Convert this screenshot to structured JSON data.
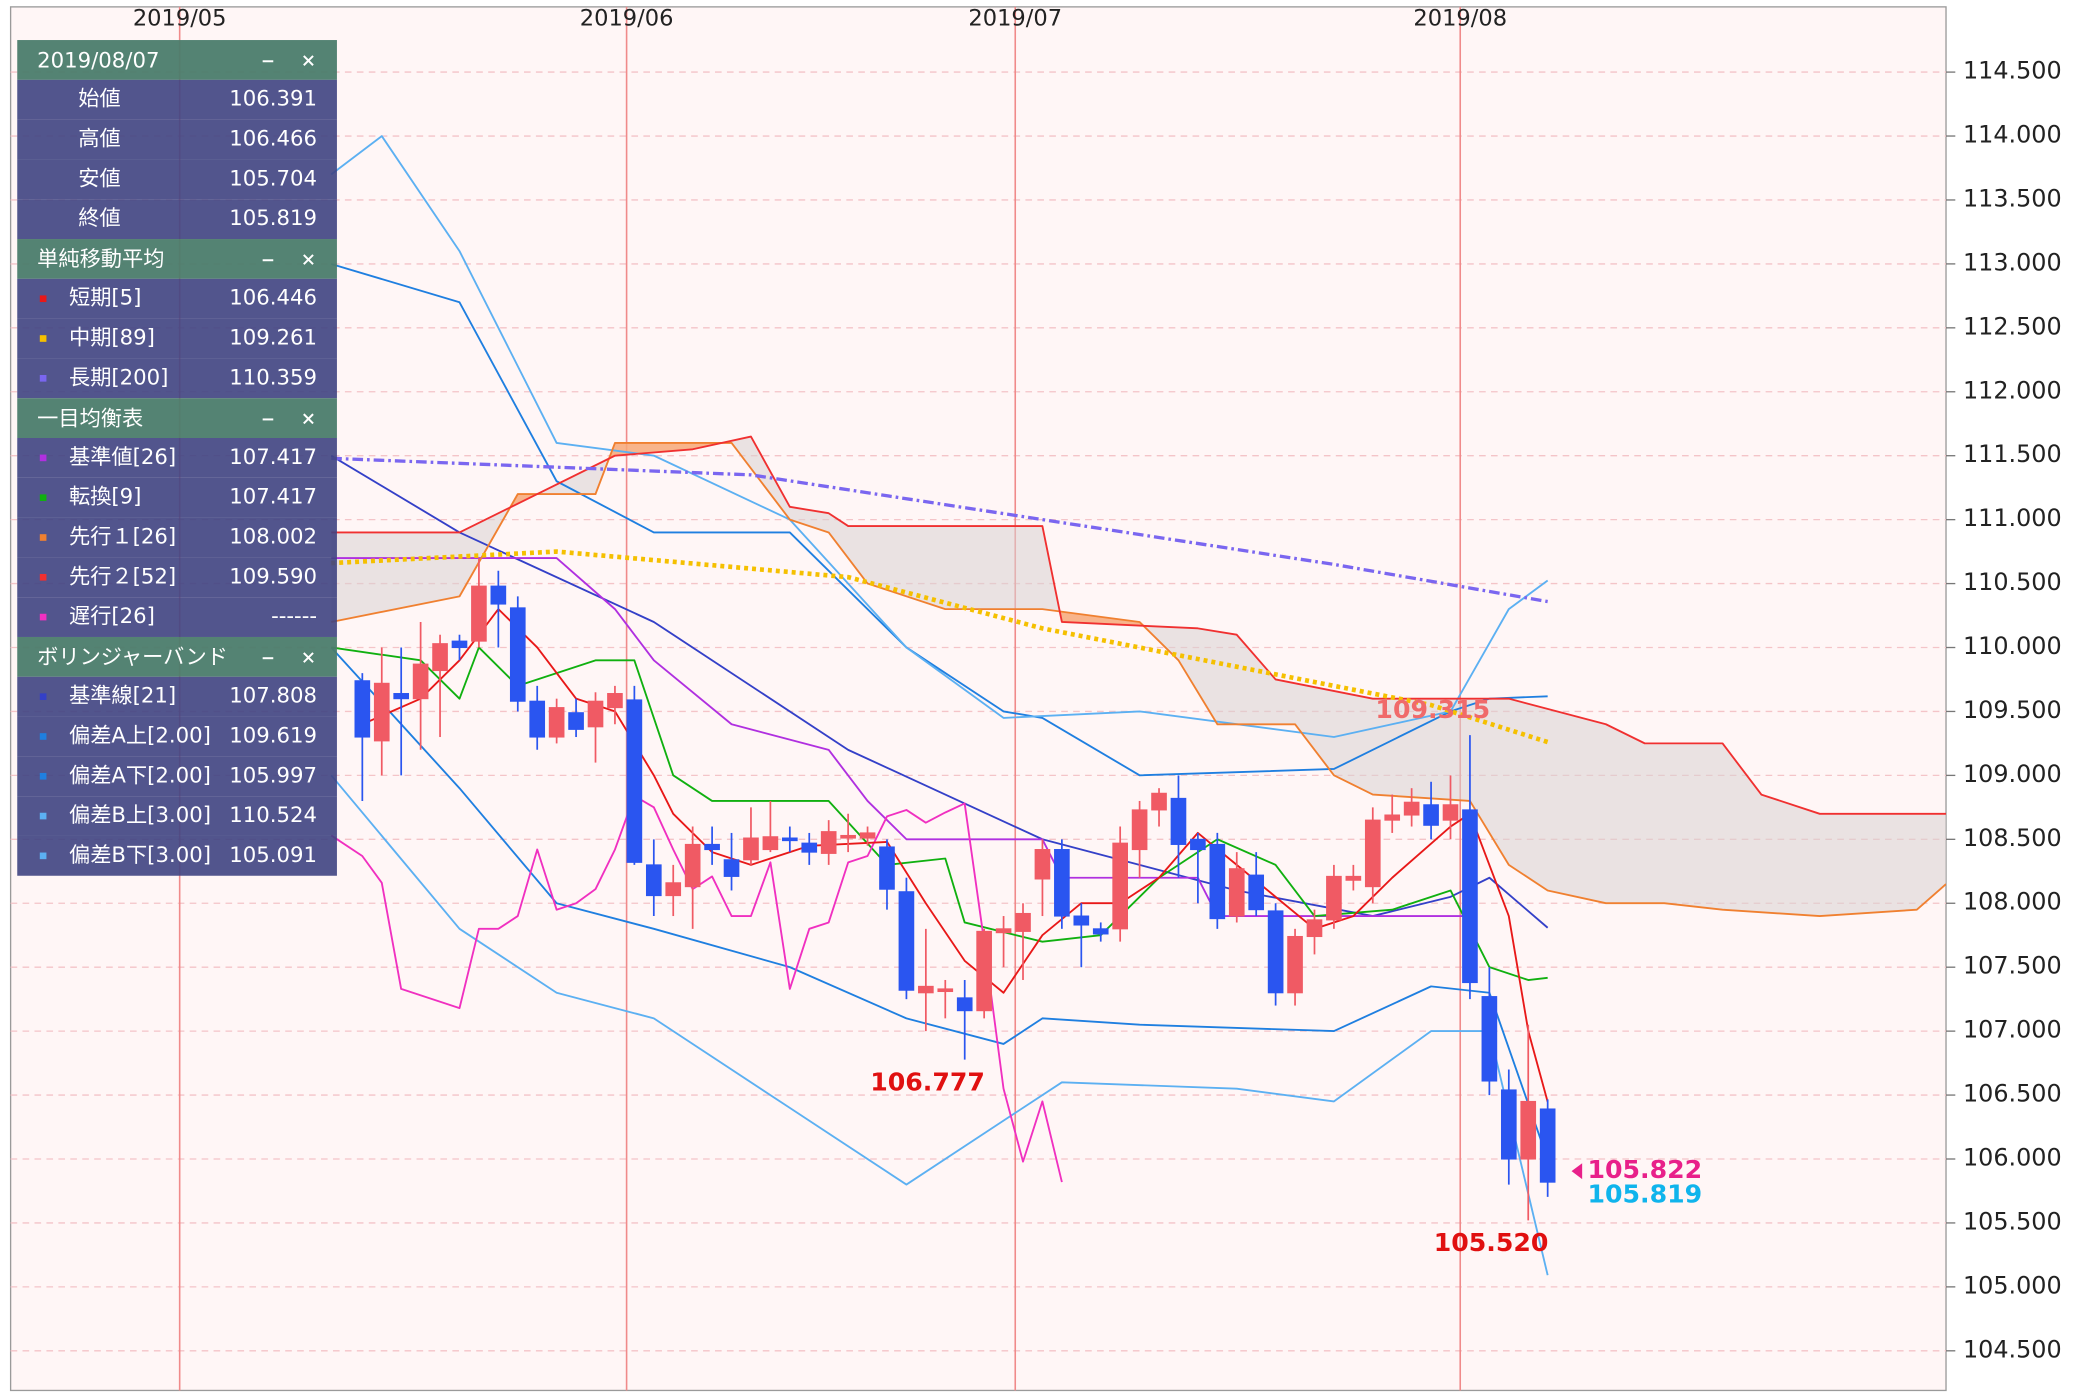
{
  "chart_data": {
    "type": "candlestick",
    "up_color": "#f05a64",
    "down_color": "#2a55f0",
    "grid": true,
    "categories": [
      null,
      null,
      null,
      null,
      null,
      null,
      null,
      null,
      null,
      null,
      null,
      null,
      null,
      null,
      null,
      null,
      null,
      null,
      null,
      null,
      null,
      null,
      null,
      null,
      null,
      null,
      null,
      null,
      null,
      null,
      null,
      null,
      null,
      null,
      null,
      null,
      null,
      null,
      null,
      null,
      null,
      null,
      null,
      null,
      null,
      null,
      null,
      null,
      null,
      null,
      null,
      null,
      null,
      null,
      null,
      null,
      null,
      null,
      null,
      null,
      null,
      null
    ],
    "open": [
      109.74,
      109.27,
      109.64,
      109.6,
      109.82,
      110.05,
      110.05,
      110.48,
      110.31,
      109.58,
      109.3,
      109.49,
      109.38,
      109.53,
      109.59,
      108.3,
      108.06,
      108.13,
      108.46,
      108.34,
      108.34,
      108.42,
      108.51,
      108.47,
      108.39,
      108.51,
      108.51,
      108.44,
      108.09,
      107.3,
      107.31,
      107.26,
      107.16,
      107.77,
      107.78,
      108.19,
      108.42,
      107.9,
      107.8,
      107.8,
      108.42,
      108.73,
      108.82,
      108.5,
      108.46,
      107.9,
      108.22,
      107.94,
      107.3,
      107.74,
      107.87,
      108.18,
      108.13,
      108.65,
      108.69,
      108.77,
      108.65,
      108.73,
      107.27,
      106.54,
      106.0,
      106.391
    ],
    "high": [
      109.8,
      110.0,
      110.0,
      110.2,
      110.1,
      110.1,
      110.7,
      110.6,
      110.4,
      109.7,
      109.6,
      109.6,
      109.65,
      109.7,
      109.7,
      108.5,
      108.3,
      108.6,
      108.6,
      108.55,
      108.75,
      108.8,
      108.6,
      108.55,
      108.65,
      108.7,
      108.6,
      108.5,
      108.2,
      107.8,
      107.4,
      107.4,
      107.8,
      107.9,
      108.0,
      108.5,
      108.5,
      108.0,
      107.85,
      108.6,
      108.8,
      108.9,
      109.0,
      108.55,
      108.55,
      108.4,
      108.4,
      108.0,
      107.8,
      107.95,
      108.3,
      108.3,
      108.75,
      108.85,
      108.9,
      108.95,
      109.0,
      109.315,
      107.5,
      106.7,
      107.05,
      106.466
    ],
    "low": [
      108.8,
      109.0,
      109.0,
      109.2,
      109.3,
      109.9,
      110.0,
      110.0,
      109.5,
      109.2,
      109.25,
      109.3,
      109.1,
      109.4,
      108.3,
      107.9,
      107.9,
      107.8,
      108.3,
      108.1,
      108.3,
      108.4,
      108.4,
      108.3,
      108.3,
      108.4,
      108.45,
      107.95,
      107.25,
      107.0,
      107.1,
      106.777,
      107.1,
      107.5,
      107.4,
      107.9,
      107.8,
      107.5,
      107.7,
      107.7,
      108.2,
      108.6,
      108.2,
      108.0,
      107.8,
      107.85,
      107.9,
      107.2,
      107.2,
      107.6,
      107.8,
      108.1,
      108.0,
      108.55,
      108.6,
      108.5,
      108.5,
      107.25,
      106.5,
      105.8,
      105.52,
      105.704
    ],
    "close": [
      109.3,
      109.72,
      109.6,
      109.87,
      110.03,
      110.0,
      110.48,
      110.34,
      109.58,
      109.3,
      109.53,
      109.36,
      109.58,
      109.64,
      108.32,
      108.06,
      108.16,
      108.46,
      108.42,
      108.21,
      108.51,
      108.52,
      108.49,
      108.4,
      108.56,
      108.53,
      108.55,
      108.11,
      107.32,
      107.35,
      107.33,
      107.16,
      107.78,
      107.8,
      107.92,
      108.42,
      107.9,
      107.83,
      107.76,
      108.47,
      108.73,
      108.86,
      108.46,
      108.42,
      107.88,
      108.27,
      107.95,
      107.3,
      107.74,
      107.87,
      108.21,
      108.21,
      108.65,
      108.69,
      108.79,
      108.61,
      108.77,
      107.38,
      106.61,
      106.0,
      106.45,
      105.819
    ],
    "xlim": [
      -18.1,
      81.5
    ],
    "xticks": [
      {
        "value": -9.4,
        "label": "2019/05"
      },
      {
        "value": 13.6,
        "label": "2019/06"
      },
      {
        "value": 33.6,
        "label": "2019/07"
      },
      {
        "value": 56.5,
        "label": "2019/08"
      }
    ],
    "ylim": [
      104.19,
      115.01
    ],
    "yticks": [
      {
        "value": 104.5,
        "label": "104.500"
      },
      {
        "value": 105,
        "label": "105.000"
      },
      {
        "value": 105.5,
        "label": "105.500"
      },
      {
        "value": 106,
        "label": "106.000"
      },
      {
        "value": 106.5,
        "label": "106.500"
      },
      {
        "value": 107,
        "label": "107.000"
      },
      {
        "value": 107.5,
        "label": "107.500"
      },
      {
        "value": 108,
        "label": "108.000"
      },
      {
        "value": 108.5,
        "label": "108.500"
      },
      {
        "value": 109,
        "label": "109.000"
      },
      {
        "value": 109.5,
        "label": "109.500"
      },
      {
        "value": 110,
        "label": "110.000"
      },
      {
        "value": 110.5,
        "label": "110.500"
      },
      {
        "value": 111,
        "label": "111.000"
      },
      {
        "value": 111.5,
        "label": "111.500"
      },
      {
        "value": 112,
        "label": "112.000"
      },
      {
        "value": 112.5,
        "label": "112.500"
      },
      {
        "value": 113,
        "label": "113.000"
      },
      {
        "value": 113.5,
        "label": "113.500"
      },
      {
        "value": 114,
        "label": "114.000"
      },
      {
        "value": 114.5,
        "label": "114.500"
      }
    ],
    "annotations": [
      {
        "label": "106.777",
        "value": 106.777,
        "x": 31,
        "color": "#e01010",
        "position": "below"
      },
      {
        "label": "109.315",
        "value": 109.315,
        "x": 57,
        "color": "#f06a6a",
        "position": "above"
      },
      {
        "label": "105.520",
        "value": 105.52,
        "x": 60,
        "color": "#e01010",
        "position": "below"
      }
    ],
    "last_labels": [
      {
        "label": "105.822",
        "value": 105.822,
        "color": "#e8208a"
      },
      {
        "label": "105.819",
        "value": 105.819,
        "color": "#10b4ec"
      }
    ],
    "panel": {
      "title": "2019/08/07",
      "rows": [
        {
          "label": "始値",
          "value": "106.391"
        },
        {
          "label": "高値",
          "value": "106.466"
        },
        {
          "label": "安値",
          "value": "105.704"
        },
        {
          "label": "終値",
          "value": "105.819"
        }
      ]
    },
    "indicators": [
      {
        "title": "単純移動平均",
        "series": [
          {
            "name": "短期[5]",
            "color": "#e81818",
            "value_label": "106.446",
            "style": "solid",
            "x": [
              0,
              3,
              5,
              7,
              9,
              11,
              13,
              15,
              16,
              18,
              20,
              23,
              27,
              29,
              31,
              33,
              35,
              37,
              39,
              41,
              43,
              45,
              47,
              49,
              51,
              53,
              56,
              57,
              59,
              60,
              61
            ],
            "values": [
              109.4,
              109.6,
              109.9,
              110.3,
              110.0,
              109.6,
              109.5,
              109.0,
              108.7,
              108.4,
              108.3,
              108.45,
              108.48,
              108.0,
              107.55,
              107.3,
              107.75,
              108.0,
              108.0,
              108.2,
              108.55,
              108.3,
              108.05,
              107.8,
              107.9,
              108.2,
              108.6,
              108.7,
              107.9,
              107.0,
              106.446
            ]
          },
          {
            "name": "中期[89]",
            "color": "#f5c000",
            "value_label": "109.261",
            "style": "dotted",
            "x": [
              -1.6,
              10,
              25,
              35,
              45,
              55,
              61
            ],
            "values": [
              110.66,
              110.75,
              110.55,
              110.15,
              109.85,
              109.55,
              109.261
            ]
          },
          {
            "name": "長期[200]",
            "color": "#7a66f0",
            "value_label": "110.359",
            "style": "dashdot",
            "x": [
              -1.6,
              20,
              35,
              50,
              61
            ],
            "values": [
              111.48,
              111.35,
              111.0,
              110.65,
              110.359
            ]
          }
        ]
      },
      {
        "title": "一目均衡表",
        "cloud_fill": {
          "above": "#f7a878",
          "below": "#d8d2d2"
        },
        "series": [
          {
            "name": "基準値[26]",
            "color": "#b030e0",
            "value_label": "107.417",
            "style": "solid",
            "x": [
              -1.6,
              10,
              13,
              15,
              19,
              24,
              26,
              28,
              35,
              36,
              43,
              44,
              57
            ],
            "values": [
              110.7,
              110.7,
              110.3,
              109.9,
              109.4,
              109.2,
              108.8,
              108.5,
              108.5,
              108.2,
              108.2,
              107.9,
              107.9
            ]
          },
          {
            "name": "転換[9]",
            "color": "#10b010",
            "value_label": "107.417",
            "style": "solid",
            "x": [
              -1.6,
              3,
              5,
              6,
              8,
              12,
              14,
              16,
              18,
              24,
              27,
              30,
              31,
              35,
              38,
              41,
              44,
              47,
              49,
              53,
              56,
              58,
              60,
              61
            ],
            "values": [
              110.0,
              109.9,
              109.6,
              110.0,
              109.7,
              109.9,
              109.9,
              109.0,
              108.8,
              108.8,
              108.3,
              108.35,
              107.85,
              107.7,
              107.75,
              108.2,
              108.5,
              108.3,
              107.9,
              107.95,
              108.1,
              107.5,
              107.4,
              107.417
            ]
          },
          {
            "name": "先行１[26]",
            "color": "#f08030",
            "value_label": "108.002",
            "style": "solid",
            "x": [
              -1.6,
              5,
              8,
              12,
              13,
              17,
              19,
              22,
              24,
              26,
              30,
              35,
              40,
              42,
              44,
              48,
              50,
              52,
              57,
              59,
              61,
              64,
              67,
              70,
              75,
              80,
              81.5
            ],
            "values": [
              110.2,
              110.4,
              111.2,
              111.2,
              111.6,
              111.6,
              111.6,
              111.0,
              110.9,
              110.5,
              110.3,
              110.3,
              110.2,
              109.9,
              109.4,
              109.4,
              109.0,
              108.85,
              108.8,
              108.3,
              108.1,
              108.0,
              108.0,
              107.95,
              107.9,
              107.95,
              108.15
            ]
          },
          {
            "name": "先行２[52]",
            "color": "#f03030",
            "value_label": "109.590",
            "style": "solid",
            "x": [
              -1.6,
              5,
              13,
              17,
              20,
              22,
              24,
              25,
              35,
              36,
              43,
              45,
              47,
              52,
              59,
              64,
              66,
              70,
              72,
              75,
              81.5
            ],
            "values": [
              110.9,
              110.9,
              111.5,
              111.55,
              111.65,
              111.1,
              111.05,
              110.95,
              110.95,
              110.2,
              110.15,
              110.1,
              109.75,
              109.6,
              109.6,
              109.4,
              109.25,
              109.25,
              108.85,
              108.7,
              108.7
            ]
          },
          {
            "name": "遅行[26]",
            "color": "#f030c0",
            "value_label": "------",
            "style": "solid",
            "x": [
              -1.6,
              0,
              1,
              2,
              5,
              6,
              7,
              8,
              9,
              10,
              11,
              12,
              13,
              14,
              15,
              16,
              17,
              18,
              19,
              20,
              21,
              22,
              23,
              24,
              25,
              26,
              27,
              28,
              29,
              30,
              31,
              32,
              33,
              34,
              35,
              36
            ],
            "values": [
              108.53,
              108.37,
              108.16,
              107.33,
              107.18,
              107.8,
              107.8,
              107.9,
              108.42,
              107.95,
              108.0,
              108.11,
              108.42,
              108.84,
              108.75,
              108.42,
              108.11,
              108.21,
              107.9,
              107.9,
              108.32,
              107.33,
              107.8,
              107.85,
              108.32,
              108.37,
              108.68,
              108.73,
              108.63,
              108.71,
              108.78,
              107.7,
              106.55,
              105.98,
              106.45,
              105.82
            ]
          }
        ]
      },
      {
        "title": "ボリンジャーバンド",
        "series": [
          {
            "name": "基準線[21]",
            "color": "#3440c8",
            "value_label": "107.808",
            "style": "solid",
            "x": [
              -1.6,
              5,
              15,
              25,
              35,
              45,
              52,
              56,
              58,
              61
            ],
            "values": [
              111.5,
              110.9,
              110.2,
              109.2,
              108.5,
              108.1,
              107.9,
              108.05,
              108.2,
              107.808
            ]
          },
          {
            "name": "偏差A上[2.00]",
            "color": "#1f7fe0",
            "value_label": "109.619",
            "style": "solid",
            "x": [
              -1.6,
              5,
              10,
              15,
              22,
              28,
              33,
              35,
              40,
              50,
              56,
              58,
              61
            ],
            "values": [
              113.0,
              112.7,
              111.3,
              110.9,
              110.9,
              110.0,
              109.5,
              109.45,
              109.0,
              109.05,
              109.5,
              109.6,
              109.619
            ]
          },
          {
            "name": "偏差A下[2.00]",
            "color": "#1f7fe0",
            "value_label": "105.997",
            "style": "solid",
            "x": [
              -1.6,
              5,
              10,
              15,
              22,
              28,
              33,
              35,
              40,
              50,
              55,
              58,
              61
            ],
            "values": [
              110.0,
              108.9,
              108.0,
              107.8,
              107.5,
              107.1,
              106.9,
              107.1,
              107.05,
              107.0,
              107.35,
              107.3,
              105.997
            ]
          },
          {
            "name": "偏差B上[3.00]",
            "color": "#5cb0f2",
            "value_label": "110.524",
            "style": "solid",
            "x": [
              -1.6,
              1,
              5,
              10,
              15,
              22,
              28,
              33,
              40,
              50,
              56,
              59,
              61
            ],
            "values": [
              113.7,
              114.0,
              113.1,
              111.6,
              111.5,
              111.0,
              110.0,
              109.45,
              109.5,
              109.3,
              109.5,
              110.3,
              110.524
            ]
          },
          {
            "name": "偏差B下[3.00]",
            "color": "#5cb0f2",
            "value_label": "105.091",
            "style": "solid",
            "x": [
              -1.6,
              5,
              10,
              15,
              22,
              28,
              33,
              36,
              45,
              50,
              55,
              58,
              61
            ],
            "values": [
              109.0,
              107.8,
              107.3,
              107.1,
              106.4,
              105.8,
              106.3,
              106.6,
              106.55,
              106.45,
              107.0,
              107.0,
              105.091
            ]
          }
        ]
      }
    ]
  }
}
